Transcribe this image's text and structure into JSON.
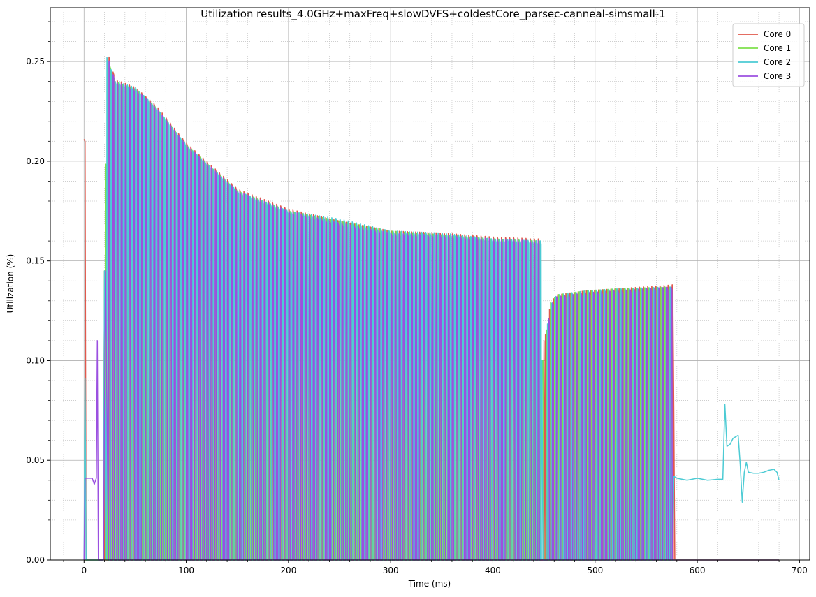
{
  "chart_data": {
    "type": "line",
    "title": "Utilization results_4.0GHz+maxFreq+slowDVFS+coldestCore_parsec-canneal-simsmall-1",
    "xlabel": "Time (ms)",
    "ylabel": "Utilization (%)",
    "xlim": [
      -33,
      710
    ],
    "ylim": [
      0,
      0.277
    ],
    "xticks": [
      0,
      100,
      200,
      300,
      400,
      500,
      600,
      700
    ],
    "xtick_labels": [
      "0",
      "100",
      "200",
      "300",
      "400",
      "500",
      "600",
      "700"
    ],
    "yticks": [
      0.0,
      0.05,
      0.1,
      0.15,
      0.2,
      0.25
    ],
    "ytick_labels": [
      "0.00",
      "0.05",
      "0.10",
      "0.15",
      "0.20",
      "0.25"
    ],
    "grid": "major solid, minor dotted",
    "legend_position": "top-right",
    "series": [
      {
        "name": "Core 0",
        "color": "#e0584c",
        "segments": [
          {
            "kind": "points",
            "points": [
              [
                0,
                0.211
              ],
              [
                1,
                0.21
              ],
              [
                2,
                0.0
              ],
              [
                19,
                0.0
              ],
              [
                20,
                0.145
              ]
            ]
          },
          {
            "kind": "oscillate",
            "x_start": 20,
            "x_end": 447,
            "step": 4,
            "phase": 0,
            "envelope": [
              [
                20,
                0.145
              ],
              [
                22,
                0.256
              ],
              [
                30,
                0.241
              ],
              [
                50,
                0.237
              ],
              [
                70,
                0.228
              ],
              [
                100,
                0.209
              ],
              [
                150,
                0.186
              ],
              [
                200,
                0.176
              ],
              [
                250,
                0.17
              ],
              [
                300,
                0.165
              ],
              [
                350,
                0.164
              ],
              [
                400,
                0.162
              ],
              [
                447,
                0.161
              ]
            ]
          },
          {
            "kind": "points",
            "points": [
              [
                447,
                0.0
              ],
              [
                449,
                0.0
              ],
              [
                450,
                0.11
              ]
            ]
          },
          {
            "kind": "oscillate",
            "x_start": 451,
            "x_end": 576,
            "step": 4,
            "phase": 0,
            "envelope": [
              [
                451,
                0.113
              ],
              [
                456,
                0.129
              ],
              [
                462,
                0.133
              ],
              [
                490,
                0.135
              ],
              [
                520,
                0.136
              ],
              [
                576,
                0.138
              ]
            ]
          },
          {
            "kind": "points",
            "points": [
              [
                576,
                0.138
              ],
              [
                577,
                0.077
              ],
              [
                578,
                0.0
              ],
              [
                680,
                0.0
              ]
            ]
          }
        ]
      },
      {
        "name": "Core 1",
        "color": "#7ee04c",
        "segments": [
          {
            "kind": "points",
            "points": [
              [
                0,
                0.0
              ],
              [
                19,
                0.0
              ],
              [
                20,
                0.145
              ]
            ]
          },
          {
            "kind": "oscillate",
            "x_start": 20,
            "x_end": 447,
            "step": 4,
            "phase": 1,
            "envelope": [
              [
                20,
                0.145
              ],
              [
                22,
                0.252
              ],
              [
                30,
                0.24
              ],
              [
                50,
                0.236
              ],
              [
                70,
                0.227
              ],
              [
                100,
                0.208
              ],
              [
                150,
                0.185
              ],
              [
                200,
                0.175
              ],
              [
                250,
                0.17
              ],
              [
                300,
                0.165
              ],
              [
                350,
                0.163
              ],
              [
                400,
                0.161
              ],
              [
                447,
                0.16
              ]
            ]
          },
          {
            "kind": "points",
            "points": [
              [
                447,
                0.0
              ],
              [
                448,
                0.1
              ],
              [
                449,
                0.1
              ],
              [
                450,
                0.0
              ]
            ]
          },
          {
            "kind": "oscillate",
            "x_start": 451,
            "x_end": 576,
            "step": 4,
            "phase": 1,
            "envelope": [
              [
                451,
                0.112
              ],
              [
                456,
                0.129
              ],
              [
                462,
                0.133
              ],
              [
                490,
                0.135
              ],
              [
                520,
                0.136
              ],
              [
                576,
                0.137
              ]
            ]
          },
          {
            "kind": "points",
            "points": [
              [
                576,
                0.0
              ],
              [
                680,
                0.0
              ]
            ]
          }
        ]
      },
      {
        "name": "Core 2",
        "color": "#4ccbd4",
        "segments": [
          {
            "kind": "points",
            "points": [
              [
                0,
                0.0
              ],
              [
                1,
                0.091
              ],
              [
                2,
                0.0
              ],
              [
                19,
                0.0
              ],
              [
                20,
                0.145
              ]
            ]
          },
          {
            "kind": "oscillate",
            "x_start": 20,
            "x_end": 447,
            "step": 4,
            "phase": 2,
            "envelope": [
              [
                20,
                0.145
              ],
              [
                22,
                0.252
              ],
              [
                30,
                0.24
              ],
              [
                50,
                0.237
              ],
              [
                70,
                0.227
              ],
              [
                100,
                0.208
              ],
              [
                150,
                0.185
              ],
              [
                200,
                0.175
              ],
              [
                250,
                0.171
              ],
              [
                300,
                0.165
              ],
              [
                350,
                0.164
              ],
              [
                400,
                0.161
              ],
              [
                447,
                0.16
              ]
            ]
          },
          {
            "kind": "points",
            "points": [
              [
                447,
                0.0
              ],
              [
                448,
                0.1
              ],
              [
                449,
                0.0
              ]
            ]
          },
          {
            "kind": "oscillate",
            "x_start": 451,
            "x_end": 576,
            "step": 4,
            "phase": 2,
            "envelope": [
              [
                451,
                0.112
              ],
              [
                456,
                0.128
              ],
              [
                462,
                0.133
              ],
              [
                490,
                0.135
              ],
              [
                520,
                0.136
              ],
              [
                576,
                0.137
              ]
            ]
          },
          {
            "kind": "points",
            "points": [
              [
                576,
                0.0
              ],
              [
                577,
                0.042
              ],
              [
                580,
                0.041
              ],
              [
                590,
                0.04
              ],
              [
                600,
                0.041
              ],
              [
                610,
                0.04
              ],
              [
                620,
                0.0405
              ],
              [
                625,
                0.0405
              ],
              [
                627,
                0.078
              ],
              [
                629,
                0.057
              ],
              [
                632,
                0.058
              ],
              [
                635,
                0.061
              ],
              [
                640,
                0.0625
              ],
              [
                642,
                0.048
              ],
              [
                644,
                0.029
              ],
              [
                646,
                0.044
              ],
              [
                648,
                0.049
              ],
              [
                650,
                0.044
              ],
              [
                655,
                0.0435
              ],
              [
                660,
                0.0435
              ],
              [
                665,
                0.044
              ],
              [
                670,
                0.045
              ],
              [
                675,
                0.0455
              ],
              [
                678,
                0.044
              ],
              [
                680,
                0.04
              ]
            ]
          }
        ]
      },
      {
        "name": "Core 3",
        "color": "#9b50e0",
        "segments": [
          {
            "kind": "points",
            "points": [
              [
                0,
                0.0
              ],
              [
                1,
                0.041
              ],
              [
                5,
                0.041
              ],
              [
                8,
                0.041
              ],
              [
                10,
                0.038
              ],
              [
                12,
                0.041
              ],
              [
                13,
                0.11
              ],
              [
                14,
                0.0
              ],
              [
                19,
                0.0
              ],
              [
                21,
                0.145
              ]
            ]
          },
          {
            "kind": "oscillate",
            "x_start": 21,
            "x_end": 447,
            "step": 4,
            "phase": 3,
            "envelope": [
              [
                21,
                0.264
              ],
              [
                23,
                0.252
              ],
              [
                30,
                0.24
              ],
              [
                50,
                0.236
              ],
              [
                70,
                0.227
              ],
              [
                100,
                0.208
              ],
              [
                150,
                0.185
              ],
              [
                200,
                0.175
              ],
              [
                250,
                0.169
              ],
              [
                300,
                0.164
              ],
              [
                350,
                0.163
              ],
              [
                400,
                0.161
              ],
              [
                447,
                0.16
              ]
            ]
          },
          {
            "kind": "points",
            "points": [
              [
                447,
                0.0
              ],
              [
                449,
                0.0
              ]
            ]
          },
          {
            "kind": "oscillate",
            "x_start": 451,
            "x_end": 576,
            "step": 4,
            "phase": 3,
            "envelope": [
              [
                451,
                0.111
              ],
              [
                456,
                0.128
              ],
              [
                462,
                0.132
              ],
              [
                490,
                0.134
              ],
              [
                520,
                0.135
              ],
              [
                576,
                0.137
              ]
            ]
          },
          {
            "kind": "points",
            "points": [
              [
                576,
                0.0
              ],
              [
                680,
                0.0
              ]
            ]
          }
        ]
      }
    ]
  }
}
